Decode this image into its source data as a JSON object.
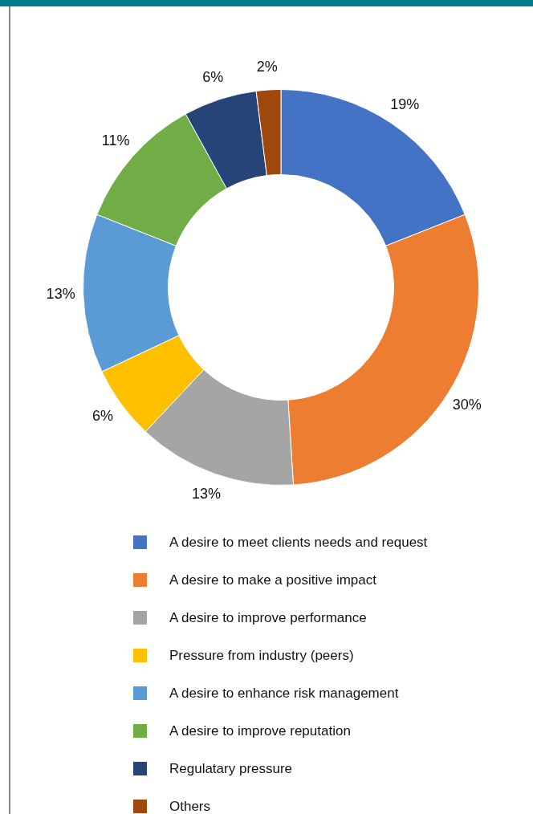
{
  "chart_data": {
    "type": "donut",
    "categories": [
      "A desire to meet clients needs and request",
      "A desire to make a positive impact",
      "A desire to improve performance",
      "Pressure from industry (peers)",
      "A desire to enhance risk management",
      "A desire to improve reputation",
      "Regulatary pressure",
      "Others"
    ],
    "values": [
      19,
      30,
      13,
      6,
      13,
      11,
      6,
      2
    ],
    "colors": [
      "#4472c4",
      "#ed7d31",
      "#a5a5a5",
      "#ffc000",
      "#5b9bd5",
      "#70ad47",
      "#264478",
      "#9e480e"
    ],
    "value_labels": [
      "19%",
      "30%",
      "13%",
      "6%",
      "13%",
      "11%",
      "6%",
      "2%"
    ],
    "legend": "bottom"
  }
}
